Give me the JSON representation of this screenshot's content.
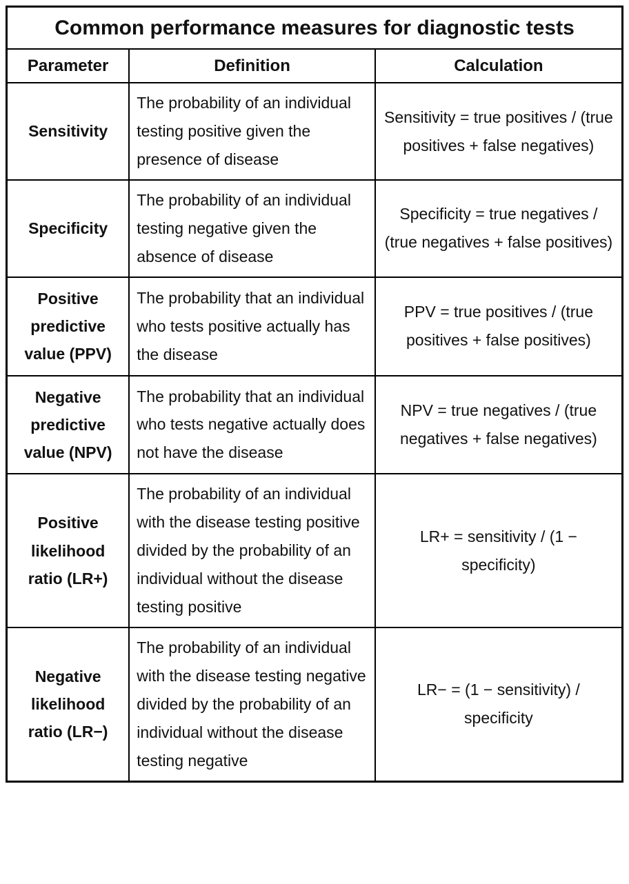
{
  "table": {
    "title": "Common performance measures for diagnostic tests",
    "headers": [
      "Parameter",
      "Definition",
      "Calculation"
    ],
    "rows": [
      {
        "parameter": "Sensitivity",
        "definition": "The probability of an individual testing positive given the presence of disease",
        "calculation": "Sensitivity = true positives / (true positives + false negatives)"
      },
      {
        "parameter": "Specificity",
        "definition": "The probability of an individual testing negative given the absence of disease",
        "calculation": "Specificity = true negatives / (true negatives + false positives)"
      },
      {
        "parameter": "Positive predictive value (PPV)",
        "definition": "The probability that an individual who tests positive actually has the disease",
        "calculation": "PPV = true positives / (true positives + false positives)"
      },
      {
        "parameter": "Negative predictive value (NPV)",
        "definition": "The probability that an individual who tests negative actually does not have the disease",
        "calculation": "NPV = true negatives / (true negatives + false negatives)"
      },
      {
        "parameter": "Positive likelihood ratio (LR+)",
        "definition": "The probability of an individual with the disease testing positive divided by the probability of an individual without the disease testing positive",
        "calculation": "LR+ = sensitivity / (1 − specificity)"
      },
      {
        "parameter": "Negative likelihood ratio (LR−)",
        "definition": "The probability of an individual with the disease testing negative divided by the probability of an individual without the disease testing negative",
        "calculation": "LR− = (1 − sensitivity) / specificity"
      }
    ]
  }
}
